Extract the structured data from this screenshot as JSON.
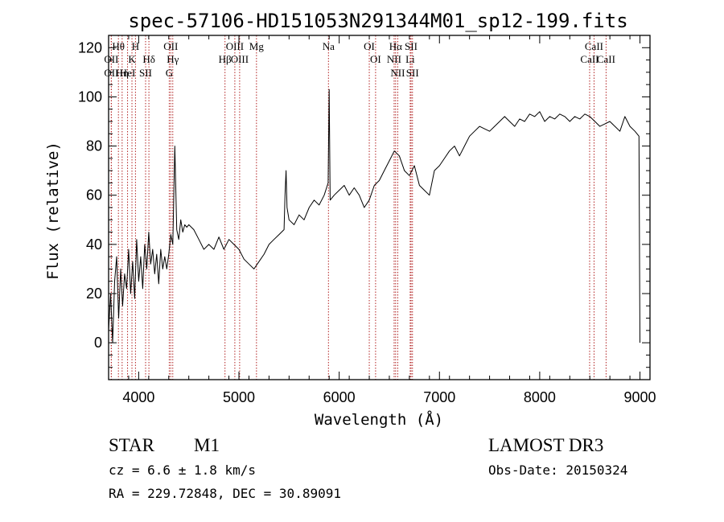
{
  "chart_data": {
    "type": "line",
    "title": "spec-57106-HD151053N291344M01_sp12-199.fits",
    "xlabel": "Wavelength (Å)",
    "ylabel": "Flux (relative)",
    "xlim": [
      3700,
      9100
    ],
    "ylim": [
      -15,
      125
    ],
    "xticks": [
      4000,
      5000,
      6000,
      7000,
      8000,
      9000
    ],
    "yticks": [
      0,
      20,
      40,
      60,
      80,
      100,
      120
    ],
    "grid": false,
    "line_color": "#000000",
    "marker_color": "#b22222",
    "series": [
      {
        "x": [
          3700,
          3720,
          3740,
          3760,
          3780,
          3800,
          3820,
          3840,
          3860,
          3880,
          3900,
          3920,
          3940,
          3960,
          3980,
          4000,
          4020,
          4040,
          4060,
          4080,
          4100,
          4120,
          4140,
          4160,
          4180,
          4200,
          4220,
          4240,
          4260,
          4280,
          4300,
          4320,
          4340,
          4360,
          4380,
          4400,
          4420,
          4440,
          4460,
          4480,
          4500,
          4550,
          4600,
          4650,
          4700,
          4750,
          4800,
          4850,
          4900,
          4950,
          5000,
          5050,
          5100,
          5150,
          5200,
          5250,
          5300,
          5350,
          5400,
          5450,
          5460,
          5470,
          5480,
          5500,
          5550,
          5600,
          5650,
          5700,
          5750,
          5800,
          5850,
          5890,
          5900,
          5910,
          5950,
          6000,
          6050,
          6100,
          6150,
          6200,
          6250,
          6300,
          6350,
          6400,
          6450,
          6500,
          6550,
          6600,
          6650,
          6700,
          6750,
          6800,
          6850,
          6900,
          6950,
          7000,
          7050,
          7100,
          7150,
          7200,
          7250,
          7300,
          7350,
          7400,
          7450,
          7500,
          7550,
          7600,
          7650,
          7700,
          7750,
          7800,
          7850,
          7900,
          7950,
          8000,
          8050,
          8100,
          8150,
          8200,
          8250,
          8300,
          8350,
          8400,
          8450,
          8500,
          8550,
          8600,
          8650,
          8700,
          8750,
          8800,
          8850,
          8900,
          8950,
          8990,
          9000
        ],
        "y": [
          5,
          20,
          0,
          25,
          35,
          10,
          30,
          15,
          28,
          22,
          38,
          20,
          33,
          18,
          42,
          25,
          35,
          22,
          40,
          30,
          45,
          32,
          38,
          28,
          36,
          24,
          38,
          30,
          35,
          30,
          36,
          44,
          40,
          80,
          46,
          42,
          50,
          45,
          48,
          47,
          48,
          46,
          42,
          38,
          40,
          38,
          43,
          38,
          42,
          40,
          38,
          34,
          32,
          30,
          33,
          36,
          40,
          42,
          44,
          46,
          60,
          70,
          55,
          50,
          48,
          52,
          50,
          55,
          58,
          56,
          60,
          65,
          103,
          58,
          60,
          62,
          64,
          60,
          63,
          60,
          55,
          58,
          64,
          66,
          70,
          74,
          78,
          76,
          70,
          68,
          72,
          64,
          62,
          60,
          70,
          72,
          75,
          78,
          80,
          76,
          80,
          84,
          86,
          88,
          87,
          86,
          88,
          90,
          92,
          90,
          88,
          91,
          90,
          93,
          92,
          94,
          90,
          92,
          91,
          93,
          92,
          90,
          92,
          91,
          93,
          92,
          90,
          88,
          89,
          90,
          88,
          86,
          92,
          88,
          86,
          84,
          0
        ]
      }
    ],
    "annotations": [
      {
        "label": "Hθ",
        "x": 3798
      },
      {
        "label": "OII",
        "x": 3727
      },
      {
        "label": "OII",
        "x": 3727
      },
      {
        "label": "Hη",
        "x": 3835
      },
      {
        "label": "K",
        "x": 3933
      },
      {
        "label": "HeI",
        "x": 3889
      },
      {
        "label": "H",
        "x": 3968
      },
      {
        "label": "SII",
        "x": 4069
      },
      {
        "label": "Hδ",
        "x": 4102
      },
      {
        "label": "OII",
        "x": 4320
      },
      {
        "label": "Hγ",
        "x": 4340
      },
      {
        "label": "G",
        "x": 4305
      },
      {
        "label": "OIII",
        "x": 4959
      },
      {
        "label": "OIII",
        "x": 5007
      },
      {
        "label": "Hβ",
        "x": 4861
      },
      {
        "label": "Mg",
        "x": 5175
      },
      {
        "label": "Na",
        "x": 5893
      },
      {
        "label": "OI",
        "x": 6300
      },
      {
        "label": "OI",
        "x": 6363
      },
      {
        "label": "Hα",
        "x": 6563
      },
      {
        "label": "NII",
        "x": 6548
      },
      {
        "label": "NII",
        "x": 6584
      },
      {
        "label": "SII",
        "x": 6717
      },
      {
        "label": "Li",
        "x": 6708
      },
      {
        "label": "SII",
        "x": 6731
      },
      {
        "label": "CaII",
        "x": 8542
      },
      {
        "label": "CaII",
        "x": 8498
      },
      {
        "label": "CaII",
        "x": 8662
      }
    ]
  },
  "info": {
    "object_type": "STAR",
    "subclass": "M1",
    "velocity": "cz = 6.6 ± 1.8 km/s",
    "coordinates": "RA = 229.72848, DEC =  30.89091",
    "survey": "LAMOST DR3",
    "obs_date": "Obs-Date: 20150324"
  }
}
